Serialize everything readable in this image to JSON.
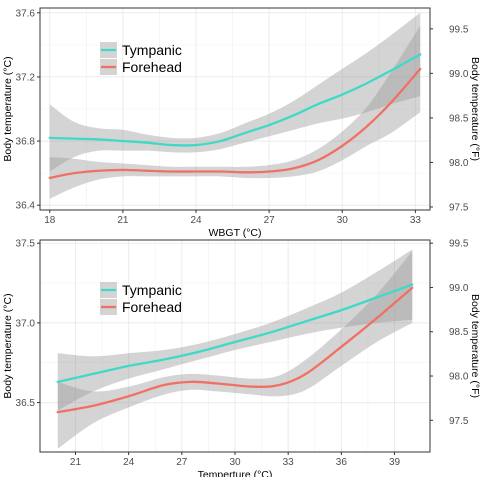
{
  "chart_data": [
    {
      "type": "line",
      "xlabel": "WBGT (°C)",
      "ylabel": "Body temperature (°C)",
      "ylabel_right": "Body temperature (°F)",
      "xlim": [
        17.6,
        33.6
      ],
      "ylim": [
        36.37,
        37.63
      ],
      "x_ticks": [
        18,
        21,
        24,
        27,
        30,
        33
      ],
      "y_ticks": [
        36.4,
        36.8,
        37.2,
        37.6
      ],
      "y_ticks_right": [
        97.5,
        98.0,
        98.5,
        99.0,
        99.5
      ],
      "grid": true,
      "legend": "top-left",
      "series": [
        {
          "name": "Tympanic",
          "color": "#3fd9c6",
          "x": [
            18,
            19,
            20,
            21,
            22,
            23,
            24,
            25,
            26,
            27,
            28,
            29,
            30,
            31,
            32,
            33.2
          ],
          "y": [
            36.82,
            36.815,
            36.81,
            36.8,
            36.79,
            36.775,
            36.775,
            36.8,
            36.85,
            36.9,
            36.96,
            37.03,
            37.09,
            37.16,
            37.24,
            37.34
          ],
          "band_upper": [
            37.03,
            36.92,
            36.88,
            36.87,
            36.84,
            36.82,
            36.82,
            36.85,
            36.91,
            36.97,
            37.05,
            37.15,
            37.25,
            37.35,
            37.46,
            37.6
          ],
          "band_lower": [
            36.61,
            36.7,
            36.74,
            36.74,
            36.74,
            36.73,
            36.73,
            36.75,
            36.79,
            36.83,
            36.87,
            36.91,
            36.94,
            36.98,
            37.03,
            37.08
          ]
        },
        {
          "name": "Forehead",
          "color": "#f07163",
          "x": [
            18,
            19,
            20,
            21,
            22,
            23,
            24,
            25,
            26,
            27,
            28,
            29,
            30,
            31,
            32,
            33.2
          ],
          "y": [
            36.57,
            36.6,
            36.615,
            36.62,
            36.615,
            36.61,
            36.61,
            36.61,
            36.605,
            36.61,
            36.63,
            36.68,
            36.77,
            36.89,
            37.04,
            37.25
          ],
          "band_upper": [
            36.7,
            36.69,
            36.67,
            36.66,
            36.65,
            36.64,
            36.64,
            36.64,
            36.64,
            36.65,
            36.68,
            36.75,
            36.86,
            37.01,
            37.23,
            37.52
          ],
          "band_lower": [
            36.44,
            36.51,
            36.56,
            36.58,
            36.58,
            36.58,
            36.58,
            36.58,
            36.57,
            36.57,
            36.58,
            36.61,
            36.68,
            36.77,
            36.85,
            36.98
          ]
        }
      ]
    },
    {
      "type": "line",
      "xlabel": "Temperture (°C)",
      "ylabel": "Body temperature (°C)",
      "ylabel_right": "Body temperature (°F)",
      "xlim": [
        19.0,
        41.0
      ],
      "ylim": [
        36.19,
        37.52
      ],
      "x_ticks": [
        21,
        24,
        27,
        30,
        33,
        36,
        39
      ],
      "y_ticks": [
        36.5,
        37.0,
        37.5
      ],
      "y_ticks_right": [
        97.5,
        98.0,
        98.5,
        99.0,
        99.5
      ],
      "grid": true,
      "legend": "top-left",
      "series": [
        {
          "name": "Tympanic",
          "color": "#3fd9c6",
          "x": [
            20,
            22,
            24,
            26,
            28,
            30,
            32,
            34,
            36,
            38,
            40
          ],
          "y": [
            36.63,
            36.68,
            36.73,
            36.77,
            36.82,
            36.88,
            36.94,
            37.01,
            37.08,
            37.16,
            37.24
          ],
          "band_upper": [
            36.81,
            36.79,
            36.81,
            36.83,
            36.87,
            36.93,
            37.0,
            37.09,
            37.19,
            37.32,
            37.46
          ],
          "band_lower": [
            36.45,
            36.57,
            36.65,
            36.71,
            36.77,
            36.83,
            36.88,
            36.93,
            36.97,
            37.0,
            37.02
          ]
        },
        {
          "name": "Forehead",
          "color": "#f07163",
          "x": [
            20,
            22,
            24,
            26,
            27.5,
            29,
            31,
            32.5,
            34,
            36,
            38,
            40
          ],
          "y": [
            36.44,
            36.48,
            36.54,
            36.61,
            36.63,
            36.62,
            36.6,
            36.61,
            36.68,
            36.85,
            37.03,
            37.22
          ],
          "band_upper": [
            36.63,
            36.57,
            36.6,
            36.66,
            36.68,
            36.67,
            36.65,
            36.67,
            36.77,
            36.96,
            37.18,
            37.45
          ],
          "band_lower": [
            36.21,
            36.37,
            36.47,
            36.55,
            36.58,
            36.57,
            36.55,
            36.54,
            36.58,
            36.73,
            36.88,
            37.0
          ]
        }
      ]
    }
  ]
}
